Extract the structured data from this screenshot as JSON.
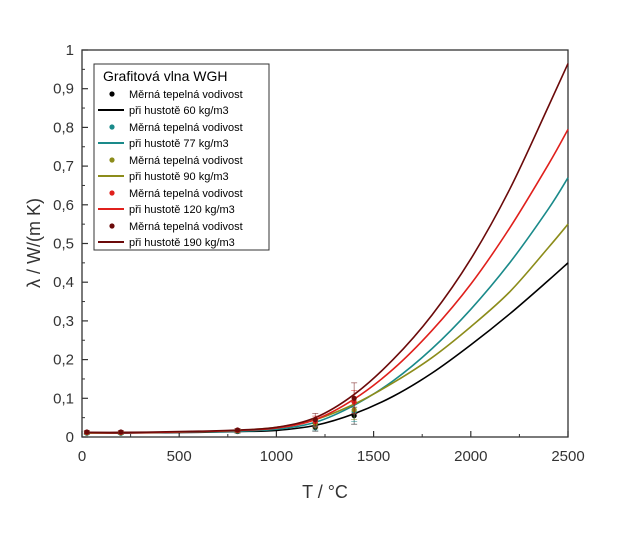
{
  "chart_data": {
    "type": "line",
    "title": "",
    "xlabel": "T / °C",
    "ylabel": "λ / W/(m K)",
    "xlim": [
      0,
      2500
    ],
    "ylim": [
      0,
      1
    ],
    "x_ticks": [
      0,
      500,
      1000,
      1500,
      2000,
      2500
    ],
    "x_tick_labels": [
      "0",
      "500",
      "1000",
      "1500",
      "2000",
      "2500"
    ],
    "y_ticks": [
      0,
      0.1,
      0.2,
      0.3,
      0.4,
      0.5,
      0.6,
      0.7,
      0.8,
      0.9,
      1
    ],
    "y_tick_labels": [
      "0",
      "0,1",
      "0,2",
      "0,3",
      "0,4",
      "0,5",
      "0,6",
      "0,7",
      "0,8",
      "0,9",
      "1"
    ],
    "grid": false,
    "legend_position": "top-left",
    "legend_title": "Grafitová vlna WGH",
    "series": [
      {
        "name": "při hustotě 60 kg/m3",
        "point_label": "Měrná tepelná vodivost",
        "color": "#000000",
        "curve_x": [
          20,
          200,
          400,
          600,
          800,
          1000,
          1200,
          1400,
          1600,
          1800,
          2000,
          2200,
          2400,
          2500
        ],
        "curve_y": [
          0.01,
          0.01,
          0.011,
          0.012,
          0.014,
          0.017,
          0.03,
          0.06,
          0.105,
          0.165,
          0.238,
          0.318,
          0.405,
          0.45
        ],
        "points": [
          {
            "x": 25,
            "y": 0.01,
            "err": 0.003
          },
          {
            "x": 200,
            "y": 0.01,
            "err": 0.003
          },
          {
            "x": 800,
            "y": 0.014,
            "err": 0.004
          },
          {
            "x": 1200,
            "y": 0.025,
            "err": 0.01
          },
          {
            "x": 1400,
            "y": 0.055,
            "err": 0.022
          }
        ]
      },
      {
        "name": "při hustotě 77 kg/m3",
        "point_label": "Měrná tepelná vodivost",
        "color": "#1a8a8a",
        "curve_x": [
          20,
          200,
          400,
          600,
          800,
          1000,
          1200,
          1400,
          1600,
          1800,
          2000,
          2200,
          2400,
          2500
        ],
        "curve_y": [
          0.01,
          0.011,
          0.012,
          0.013,
          0.015,
          0.02,
          0.038,
          0.082,
          0.145,
          0.228,
          0.33,
          0.45,
          0.59,
          0.67
        ],
        "points": [
          {
            "x": 25,
            "y": 0.01,
            "err": 0.003
          },
          {
            "x": 200,
            "y": 0.01,
            "err": 0.003
          },
          {
            "x": 800,
            "y": 0.015,
            "err": 0.004
          },
          {
            "x": 1200,
            "y": 0.03,
            "err": 0.012
          },
          {
            "x": 1400,
            "y": 0.065,
            "err": 0.025
          }
        ]
      },
      {
        "name": "při hustotě 90 kg/m3",
        "point_label": "Měrná tepelná vodivost",
        "color": "#8c8c1a",
        "curve_x": [
          20,
          200,
          400,
          600,
          800,
          1000,
          1200,
          1400,
          1600,
          1800,
          2000,
          2200,
          2400,
          2500
        ],
        "curve_y": [
          0.01,
          0.011,
          0.012,
          0.014,
          0.017,
          0.025,
          0.045,
          0.085,
          0.14,
          0.205,
          0.285,
          0.375,
          0.49,
          0.55
        ],
        "points": [
          {
            "x": 25,
            "y": 0.011,
            "err": 0.003
          },
          {
            "x": 200,
            "y": 0.011,
            "err": 0.003
          },
          {
            "x": 800,
            "y": 0.016,
            "err": 0.004
          },
          {
            "x": 1200,
            "y": 0.035,
            "err": 0.012
          },
          {
            "x": 1400,
            "y": 0.07,
            "err": 0.025
          }
        ]
      },
      {
        "name": "při hustotě 120 kg/m3",
        "point_label": "Měrná tepelná vodivost",
        "color": "#e0201c",
        "curve_x": [
          20,
          200,
          400,
          600,
          800,
          1000,
          1200,
          1400,
          1600,
          1800,
          2000,
          2200,
          2400,
          2500
        ],
        "curve_y": [
          0.011,
          0.011,
          0.012,
          0.014,
          0.017,
          0.023,
          0.045,
          0.098,
          0.175,
          0.275,
          0.395,
          0.54,
          0.705,
          0.795
        ],
        "points": [
          {
            "x": 25,
            "y": 0.012,
            "err": 0.003
          },
          {
            "x": 200,
            "y": 0.012,
            "err": 0.003
          },
          {
            "x": 800,
            "y": 0.017,
            "err": 0.004
          },
          {
            "x": 1200,
            "y": 0.04,
            "err": 0.014
          },
          {
            "x": 1400,
            "y": 0.09,
            "err": 0.03
          }
        ]
      },
      {
        "name": "při hustotě 190 kg/m3",
        "point_label": "Měrná tepelná vodivost",
        "color": "#6b0a0a",
        "curve_x": [
          20,
          200,
          400,
          600,
          800,
          1000,
          1200,
          1400,
          1600,
          1800,
          2000,
          2200,
          2400,
          2500
        ],
        "curve_y": [
          0.012,
          0.012,
          0.013,
          0.015,
          0.018,
          0.025,
          0.05,
          0.11,
          0.2,
          0.315,
          0.46,
          0.64,
          0.855,
          0.965
        ],
        "points": [
          {
            "x": 25,
            "y": 0.013,
            "err": 0.004
          },
          {
            "x": 200,
            "y": 0.013,
            "err": 0.004
          },
          {
            "x": 800,
            "y": 0.018,
            "err": 0.004
          },
          {
            "x": 1200,
            "y": 0.045,
            "err": 0.016
          },
          {
            "x": 1400,
            "y": 0.1,
            "err": 0.04
          }
        ]
      }
    ]
  }
}
